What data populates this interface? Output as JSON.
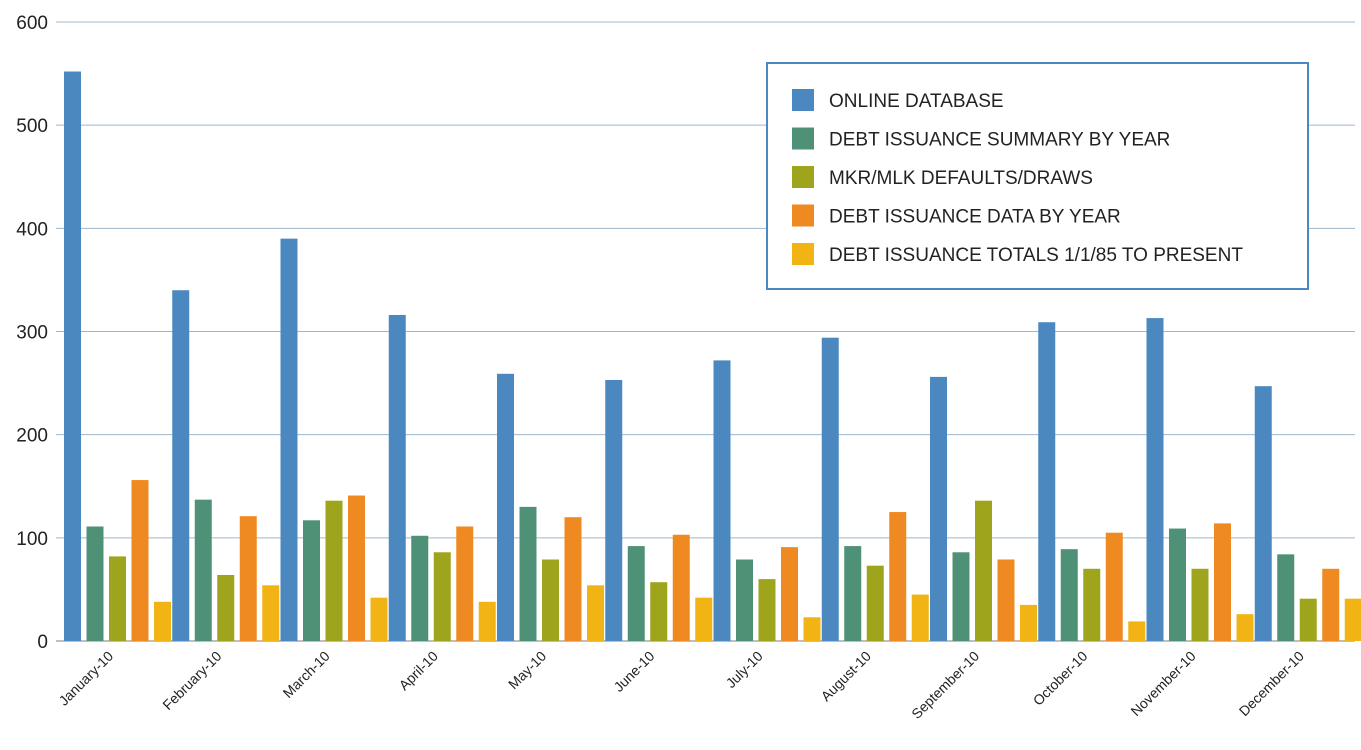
{
  "chart_data": {
    "type": "bar",
    "title": "",
    "xlabel": "",
    "ylabel": "",
    "ylim": [
      0,
      600
    ],
    "yticks": [
      0,
      100,
      200,
      300,
      400,
      500,
      600
    ],
    "grid": true,
    "legend_position": "top-right",
    "categories": [
      "January-10",
      "February-10",
      "March-10",
      "April-10",
      "May-10",
      "June-10",
      "July-10",
      "August-10",
      "September-10",
      "October-10",
      "November-10",
      "December-10"
    ],
    "series": [
      {
        "name": "ONLINE DATABASE",
        "color": "#4a88bf",
        "values": [
          552,
          340,
          390,
          316,
          259,
          253,
          272,
          294,
          256,
          309,
          313,
          247
        ]
      },
      {
        "name": "DEBT ISSUANCE SUMMARY BY YEAR",
        "color": "#4f9177",
        "values": [
          111,
          137,
          117,
          102,
          130,
          92,
          79,
          92,
          86,
          89,
          109,
          84
        ]
      },
      {
        "name": "MKR/MLK DEFAULTS/DRAWS",
        "color": "#9ea41c",
        "values": [
          82,
          64,
          136,
          86,
          79,
          57,
          60,
          73,
          136,
          70,
          70,
          41
        ]
      },
      {
        "name": "DEBT ISSUANCE DATA BY YEAR",
        "color": "#ef8a22",
        "values": [
          156,
          121,
          141,
          111,
          120,
          103,
          91,
          125,
          79,
          105,
          114,
          70
        ]
      },
      {
        "name": "DEBT ISSUANCE TOTALS 1/1/85 TO PRESENT",
        "color": "#f1b414",
        "values": [
          38,
          54,
          42,
          38,
          54,
          42,
          23,
          45,
          35,
          19,
          26,
          41
        ]
      }
    ]
  }
}
